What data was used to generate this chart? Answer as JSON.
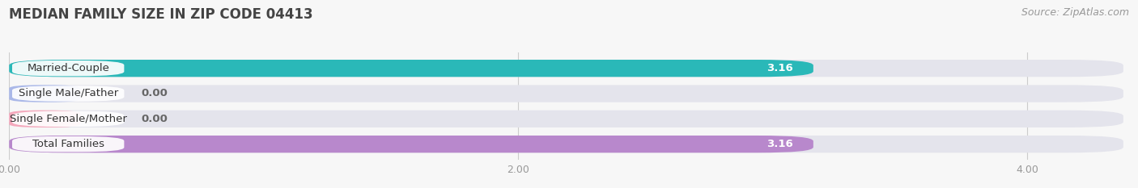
{
  "title": "MEDIAN FAMILY SIZE IN ZIP CODE 04413",
  "source": "Source: ZipAtlas.com",
  "categories": [
    "Married-Couple",
    "Single Male/Father",
    "Single Female/Mother",
    "Total Families"
  ],
  "values": [
    3.16,
    0.0,
    0.0,
    3.16
  ],
  "bar_colors": [
    "#2ab8b8",
    "#aab8e8",
    "#f4a8bc",
    "#b888cc"
  ],
  "bar_height": 0.68,
  "xlim_max": 4.4,
  "xticks": [
    0.0,
    2.0,
    4.0
  ],
  "xtick_labels": [
    "0.00",
    "2.00",
    "4.00"
  ],
  "background_color": "#f7f7f7",
  "bar_bg_color": "#e4e4ec",
  "title_fontsize": 12,
  "label_fontsize": 9.5,
  "value_fontsize": 9.5,
  "source_fontsize": 9
}
